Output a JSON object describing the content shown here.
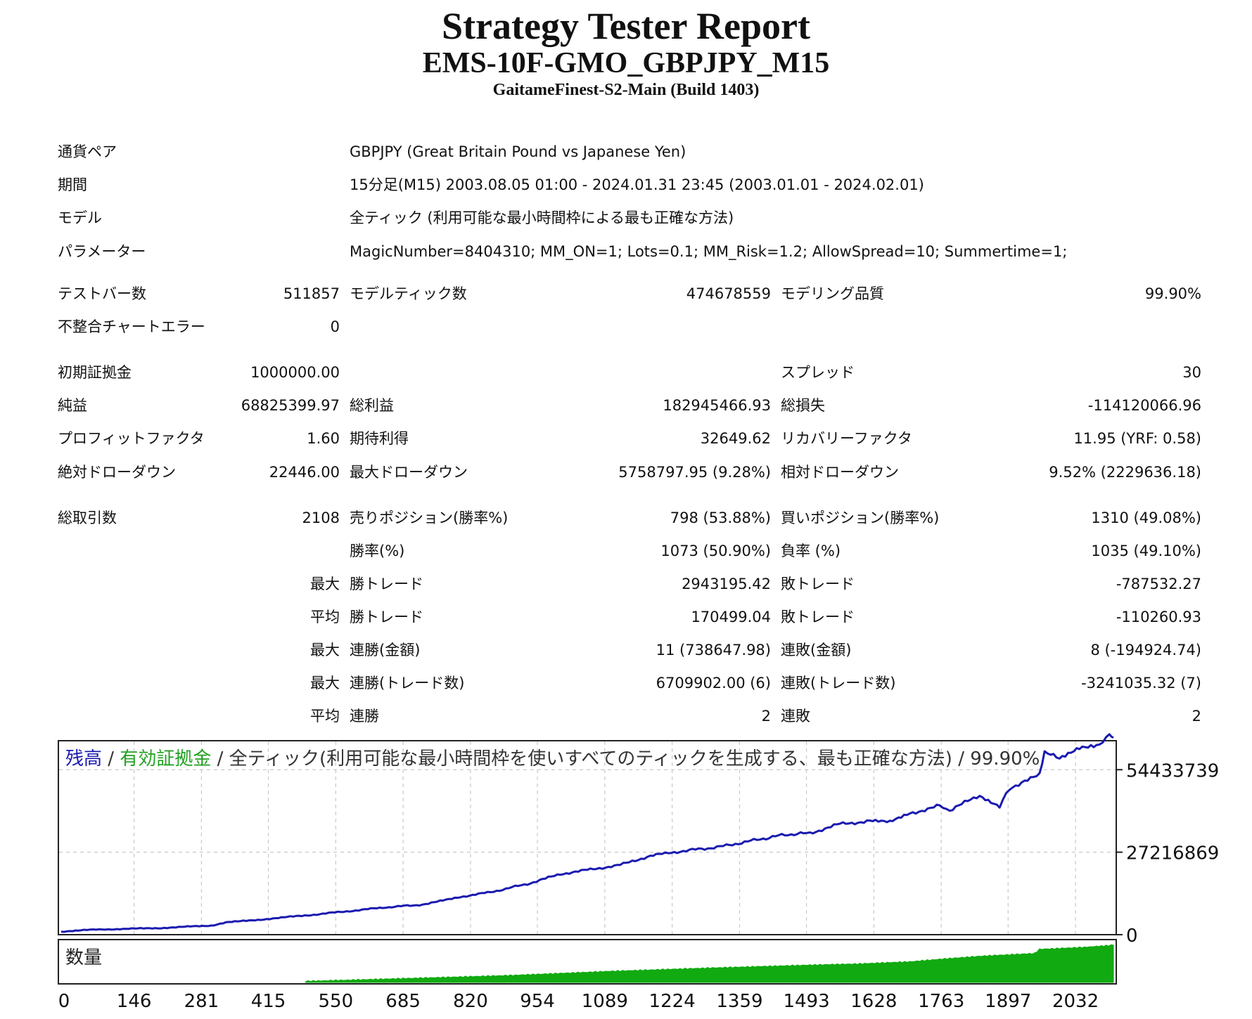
{
  "report": {
    "title": "Strategy Tester Report",
    "ea": "EMS-10F-GMO_GBPJPY_M15",
    "server": "GaitameFinest-S2-Main (Build 1403)"
  },
  "info": [
    {
      "label": "通貨ペア",
      "value": "GBPJPY (Great Britain Pound vs Japanese Yen)"
    },
    {
      "label": "期間",
      "value": "15分足(M15) 2003.08.05 01:00 - 2024.01.31 23:45 (2003.01.01 - 2024.02.01)"
    },
    {
      "label": "モデル",
      "value": "全ティック (利用可能な最小時間枠による最も正確な方法)"
    },
    {
      "label": "パラメーター",
      "value": "MagicNumber=8404310; MM_ON=1; Lots=0.1; MM_Risk=1.2; AllowSpread=10; Summertime=1;"
    }
  ],
  "stats": [
    {
      "c1l": "テストバー数",
      "c1v": "511857",
      "c2l": "モデルティック数",
      "c2v": "474678559",
      "c3l": "モデリング品質",
      "c3v": "99.90%"
    },
    {
      "c1l": "不整合チャートエラー",
      "c1v": "0",
      "c2l": "",
      "c2v": "",
      "c3l": "",
      "c3v": ""
    },
    {
      "c1l": "初期証拠金",
      "c1v": "1000000.00",
      "c2l": "",
      "c2v": "",
      "c3l": "スプレッド",
      "c3v": "30"
    },
    {
      "c1l": "純益",
      "c1v": "68825399.97",
      "c2l": "総利益",
      "c2v": "182945466.93",
      "c3l": "総損失",
      "c3v": "-114120066.96"
    },
    {
      "c1l": "プロフィットファクタ",
      "c1v": "1.60",
      "c2l": "期待利得",
      "c2v": "32649.62",
      "c3l": "リカバリーファクタ",
      "c3v": "11.95 (YRF: 0.58)"
    },
    {
      "c1l": "絶対ドローダウン",
      "c1v": "22446.00",
      "c2l": "最大ドローダウン",
      "c2v": "5758797.95 (9.28%)",
      "c3l": "相対ドローダウン",
      "c3v": "9.52% (2229636.18)"
    },
    {
      "c1l": "総取引数",
      "c1v": "2108",
      "c2l": "売りポジション(勝率%)",
      "c2v": "798 (53.88%)",
      "c3l": "買いポジション(勝率%)",
      "c3v": "1310 (49.08%)"
    },
    {
      "c1l": "",
      "c1v": "",
      "c2l": "勝率(%)",
      "c2v": "1073 (50.90%)",
      "c3l": "負率 (%)",
      "c3v": "1035 (49.10%)"
    },
    {
      "c1l": "",
      "c1v": "最大",
      "c2l": "勝トレード",
      "c2v": "2943195.42",
      "c3l": "敗トレード",
      "c3v": "-787532.27"
    },
    {
      "c1l": "",
      "c1v": "平均",
      "c2l": "勝トレード",
      "c2v": "170499.04",
      "c3l": "敗トレード",
      "c3v": "-110260.93"
    },
    {
      "c1l": "",
      "c1v": "最大",
      "c2l": "連勝(金額)",
      "c2v": "11 (738647.98)",
      "c3l": "連敗(金額)",
      "c3v": "8 (-194924.74)"
    },
    {
      "c1l": "",
      "c1v": "最大",
      "c2l": "連勝(トレード数)",
      "c2v": "6709902.00 (6)",
      "c3l": "連敗(トレード数)",
      "c3v": "-3241035.32 (7)"
    },
    {
      "c1l": "",
      "c1v": "平均",
      "c2l": "連勝",
      "c2v": "2",
      "c3l": "連敗",
      "c3v": "2"
    }
  ],
  "chart_data": {
    "type": "line",
    "legend_parts": [
      {
        "text": "残高",
        "color": "#1a1ab0"
      },
      {
        "text": " / ",
        "color": "#333333"
      },
      {
        "text": "有効証拠金",
        "color": "#22a022"
      },
      {
        "text": " / 全ティック(利用可能な最小時間枠を使いすべてのティックを生成する、最も正確な方法) / 99.90%",
        "color": "#333333"
      }
    ],
    "volume_label": "数量",
    "y_tick_labels": [
      "54433739",
      "27216869",
      "0"
    ],
    "y_ticks": [
      54433739,
      27216869,
      0
    ],
    "ylim": [
      0,
      64000000
    ],
    "x_tick_labels": [
      "0",
      "146",
      "281",
      "415",
      "550",
      "685",
      "820",
      "954",
      "1089",
      "1224",
      "1359",
      "1493",
      "1628",
      "1763",
      "1897",
      "2032"
    ],
    "x_ticks": [
      0,
      146,
      281,
      415,
      550,
      685,
      820,
      954,
      1089,
      1224,
      1359,
      1493,
      1628,
      1763,
      1897,
      2032
    ],
    "xlim": [
      0,
      2108
    ],
    "series": [
      {
        "color": "#1a1ab0",
        "x": [
          0,
          40,
          100,
          200,
          300,
          330,
          400,
          500,
          560,
          650,
          730,
          800,
          860,
          940,
          1000,
          1060,
          1120,
          1180,
          1240,
          1320,
          1400,
          1450,
          1500,
          1560,
          1620,
          1660,
          1700,
          1760,
          1780,
          1840,
          1880,
          1900,
          1930,
          1960,
          1970,
          2000,
          2040,
          2080,
          2100,
          2108
        ],
        "y": [
          1000000,
          1500000,
          1800000,
          2200000,
          3000000,
          4000000,
          5000000,
          6500000,
          7500000,
          9000000,
          10000000,
          12500000,
          14000000,
          17000000,
          20000000,
          21500000,
          23000000,
          26000000,
          27500000,
          29000000,
          31500000,
          33000000,
          33500000,
          36500000,
          37500000,
          37000000,
          40000000,
          42500000,
          41000000,
          46000000,
          42500000,
          48000000,
          51000000,
          52500000,
          60000000,
          58000000,
          62000000,
          63000000,
          65500000,
          65000000
        ]
      }
    ],
    "volume": {
      "color": "#11aa11",
      "x": [
        490,
        700,
        900,
        1100,
        1300,
        1500,
        1600,
        1700,
        1780,
        1850,
        1950,
        1960,
        2050,
        2108
      ],
      "levels": [
        0.03,
        0.1,
        0.17,
        0.27,
        0.35,
        0.42,
        0.45,
        0.5,
        0.58,
        0.64,
        0.7,
        0.8,
        0.85,
        0.9
      ]
    }
  }
}
